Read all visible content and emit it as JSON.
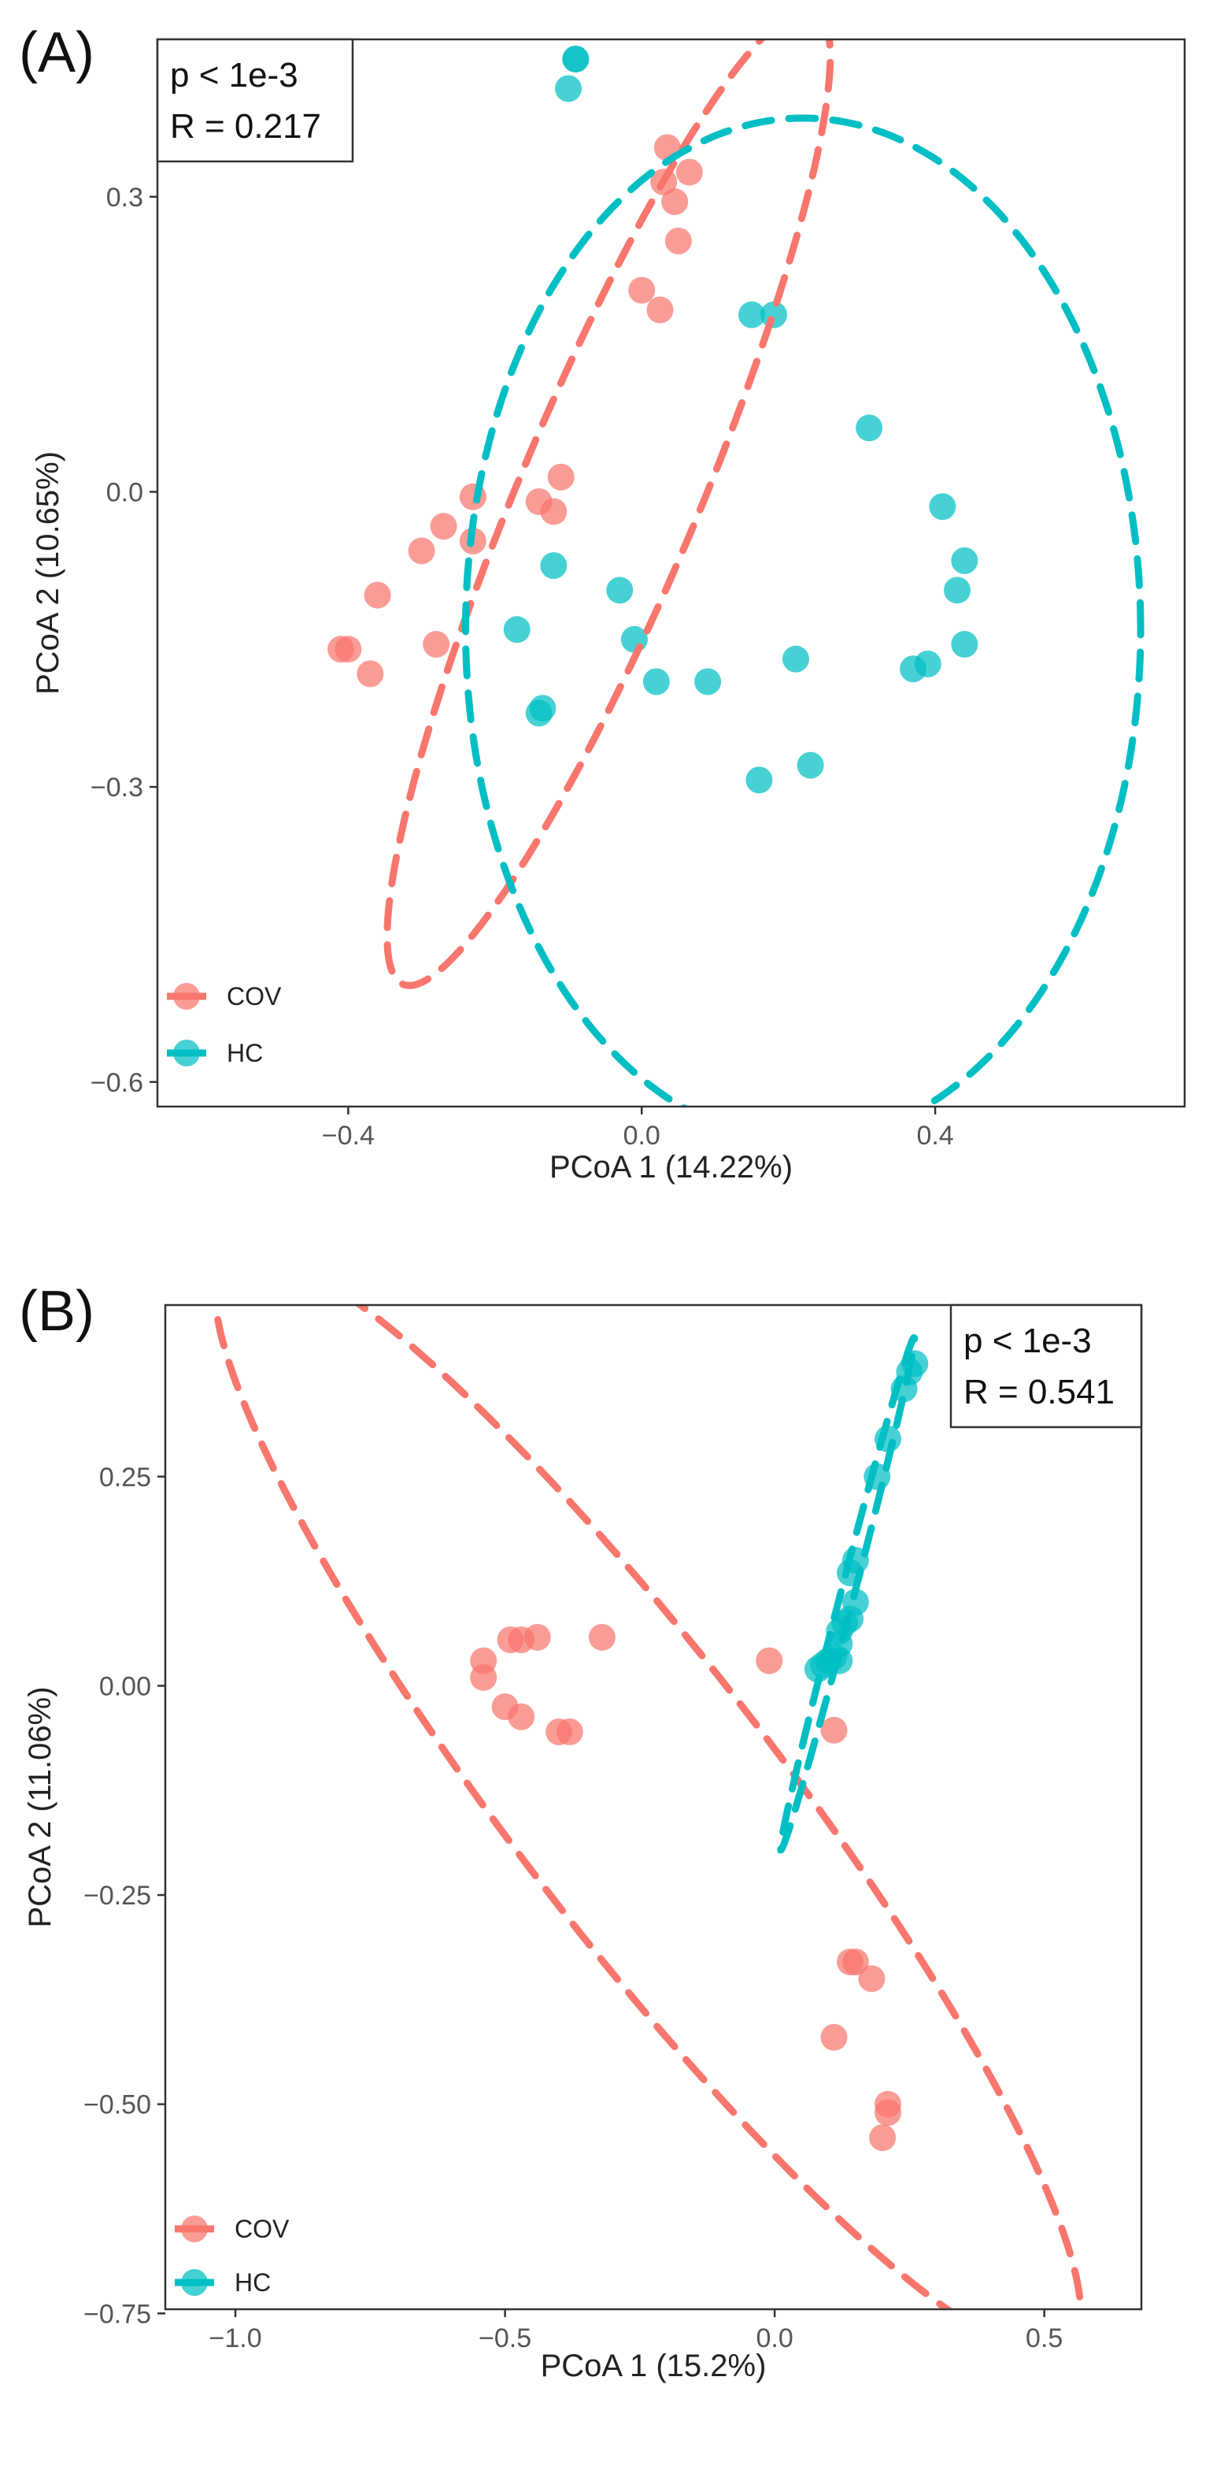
{
  "chart_data": [
    {
      "panel_label": "(A)",
      "type": "scatter",
      "xlabel": "PCoA 1 (14.22%)",
      "ylabel": "PCoA 2 (10.65%)",
      "xlim": [
        -0.66,
        0.74
      ],
      "ylim": [
        -0.625,
        0.46
      ],
      "xticks": [
        -0.4,
        0.0,
        0.4
      ],
      "xtick_labels": [
        "−0.4",
        "0.0",
        "0.4"
      ],
      "yticks": [
        -0.6,
        -0.3,
        0.0,
        0.3
      ],
      "ytick_labels": [
        "−0.6",
        "−0.3",
        "0.0",
        "0.3"
      ],
      "grid": false,
      "legend_position": "bottom-left",
      "stats": {
        "p": "p < 1e-3",
        "r": "R = 0.217"
      },
      "series": [
        {
          "name": "COV",
          "color": "#F8766D",
          "points": [
            [
              -0.41,
              -0.16
            ],
            [
              -0.4,
              -0.16
            ],
            [
              -0.36,
              -0.105
            ],
            [
              -0.37,
              -0.185
            ],
            [
              -0.28,
              -0.155
            ],
            [
              -0.3,
              -0.06
            ],
            [
              -0.27,
              -0.035
            ],
            [
              -0.23,
              -0.05
            ],
            [
              -0.23,
              -0.005
            ],
            [
              -0.14,
              -0.01
            ],
            [
              -0.12,
              -0.02
            ],
            [
              -0.11,
              0.015
            ],
            [
              0.0,
              0.205
            ],
            [
              0.025,
              0.185
            ],
            [
              0.05,
              0.255
            ],
            [
              0.045,
              0.295
            ],
            [
              0.03,
              0.315
            ],
            [
              0.035,
              0.35
            ],
            [
              0.065,
              0.325
            ]
          ],
          "ellipse": {
            "cx": -0.045,
            "cy": -0.005,
            "rx": 0.57,
            "ry": 0.115,
            "angle_deg": 60
          }
        },
        {
          "name": "HC",
          "color": "#00BFC4",
          "points": [
            [
              -0.09,
              0.44
            ],
            [
              -0.09,
              0.44
            ],
            [
              -0.1,
              0.41
            ],
            [
              0.15,
              0.18
            ],
            [
              0.18,
              0.18
            ],
            [
              0.31,
              0.065
            ],
            [
              0.41,
              -0.015
            ],
            [
              0.44,
              -0.07
            ],
            [
              0.43,
              -0.1
            ],
            [
              0.44,
              -0.155
            ],
            [
              0.39,
              -0.175
            ],
            [
              0.37,
              -0.18
            ],
            [
              0.21,
              -0.17
            ],
            [
              0.09,
              -0.193
            ],
            [
              0.02,
              -0.193
            ],
            [
              -0.01,
              -0.15
            ],
            [
              -0.03,
              -0.1
            ],
            [
              -0.12,
              -0.075
            ],
            [
              -0.17,
              -0.14
            ],
            [
              -0.14,
              -0.225
            ],
            [
              -0.135,
              -0.22
            ],
            [
              0.16,
              -0.293
            ],
            [
              0.23,
              -0.278
            ]
          ],
          "ellipse": {
            "cx": 0.22,
            "cy": -0.14,
            "rx": 0.46,
            "ry": 0.52,
            "angle_deg": 0
          }
        }
      ]
    },
    {
      "panel_label": "(B)",
      "type": "scatter",
      "xlabel": "PCoA 1 (15.2%)",
      "ylabel": "PCoA 2 (11.06%)",
      "xlim": [
        -1.13,
        0.68
      ],
      "ylim": [
        -0.745,
        0.455
      ],
      "xticks": [
        -1.0,
        -0.5,
        0.0,
        0.5
      ],
      "xtick_labels": [
        "−1.0",
        "−0.5",
        "0.0",
        "0.5"
      ],
      "yticks": [
        -0.75,
        -0.5,
        -0.25,
        0.0,
        0.25
      ],
      "ytick_labels": [
        "−0.75",
        "−0.50",
        "−0.25",
        "0.00",
        "0.25"
      ],
      "grid": false,
      "legend_position": "bottom-left",
      "stats": {
        "p": "p < 1e-3",
        "r": "R = 0.541"
      },
      "series": [
        {
          "name": "COV",
          "color": "#F8766D",
          "points": [
            [
              -0.54,
              0.03
            ],
            [
              -0.54,
              0.01
            ],
            [
              -0.49,
              0.055
            ],
            [
              -0.47,
              0.055
            ],
            [
              -0.44,
              0.058
            ],
            [
              -0.32,
              0.058
            ],
            [
              -0.5,
              -0.025
            ],
            [
              -0.47,
              -0.037
            ],
            [
              -0.4,
              -0.055
            ],
            [
              -0.38,
              -0.055
            ],
            [
              -0.01,
              0.03
            ],
            [
              0.11,
              -0.053
            ],
            [
              0.14,
              -0.33
            ],
            [
              0.15,
              -0.33
            ],
            [
              0.18,
              -0.35
            ],
            [
              0.11,
              -0.42
            ],
            [
              0.21,
              -0.5
            ],
            [
              0.21,
              -0.51
            ],
            [
              0.2,
              -0.54
            ]
          ],
          "ellipse": {
            "cx": -0.235,
            "cy": -0.14,
            "rx": 1.02,
            "ry": 0.2,
            "angle_deg": -39
          }
        },
        {
          "name": "HC",
          "color": "#00BFC4",
          "points": [
            [
              0.26,
              0.385
            ],
            [
              0.25,
              0.375
            ],
            [
              0.24,
              0.355
            ],
            [
              0.21,
              0.295
            ],
            [
              0.19,
              0.25
            ],
            [
              0.15,
              0.15
            ],
            [
              0.14,
              0.135
            ],
            [
              0.15,
              0.1
            ],
            [
              0.14,
              0.08
            ],
            [
              0.13,
              0.075
            ],
            [
              0.12,
              0.065
            ],
            [
              0.12,
              0.05
            ],
            [
              0.11,
              0.035
            ],
            [
              0.1,
              0.03
            ],
            [
              0.09,
              0.025
            ],
            [
              0.08,
              0.02
            ],
            [
              0.12,
              0.03
            ]
          ],
          "ellipse": {
            "cx": 0.135,
            "cy": 0.11,
            "rx": 0.33,
            "ry": 0.012,
            "angle_deg": 68
          }
        }
      ]
    }
  ]
}
